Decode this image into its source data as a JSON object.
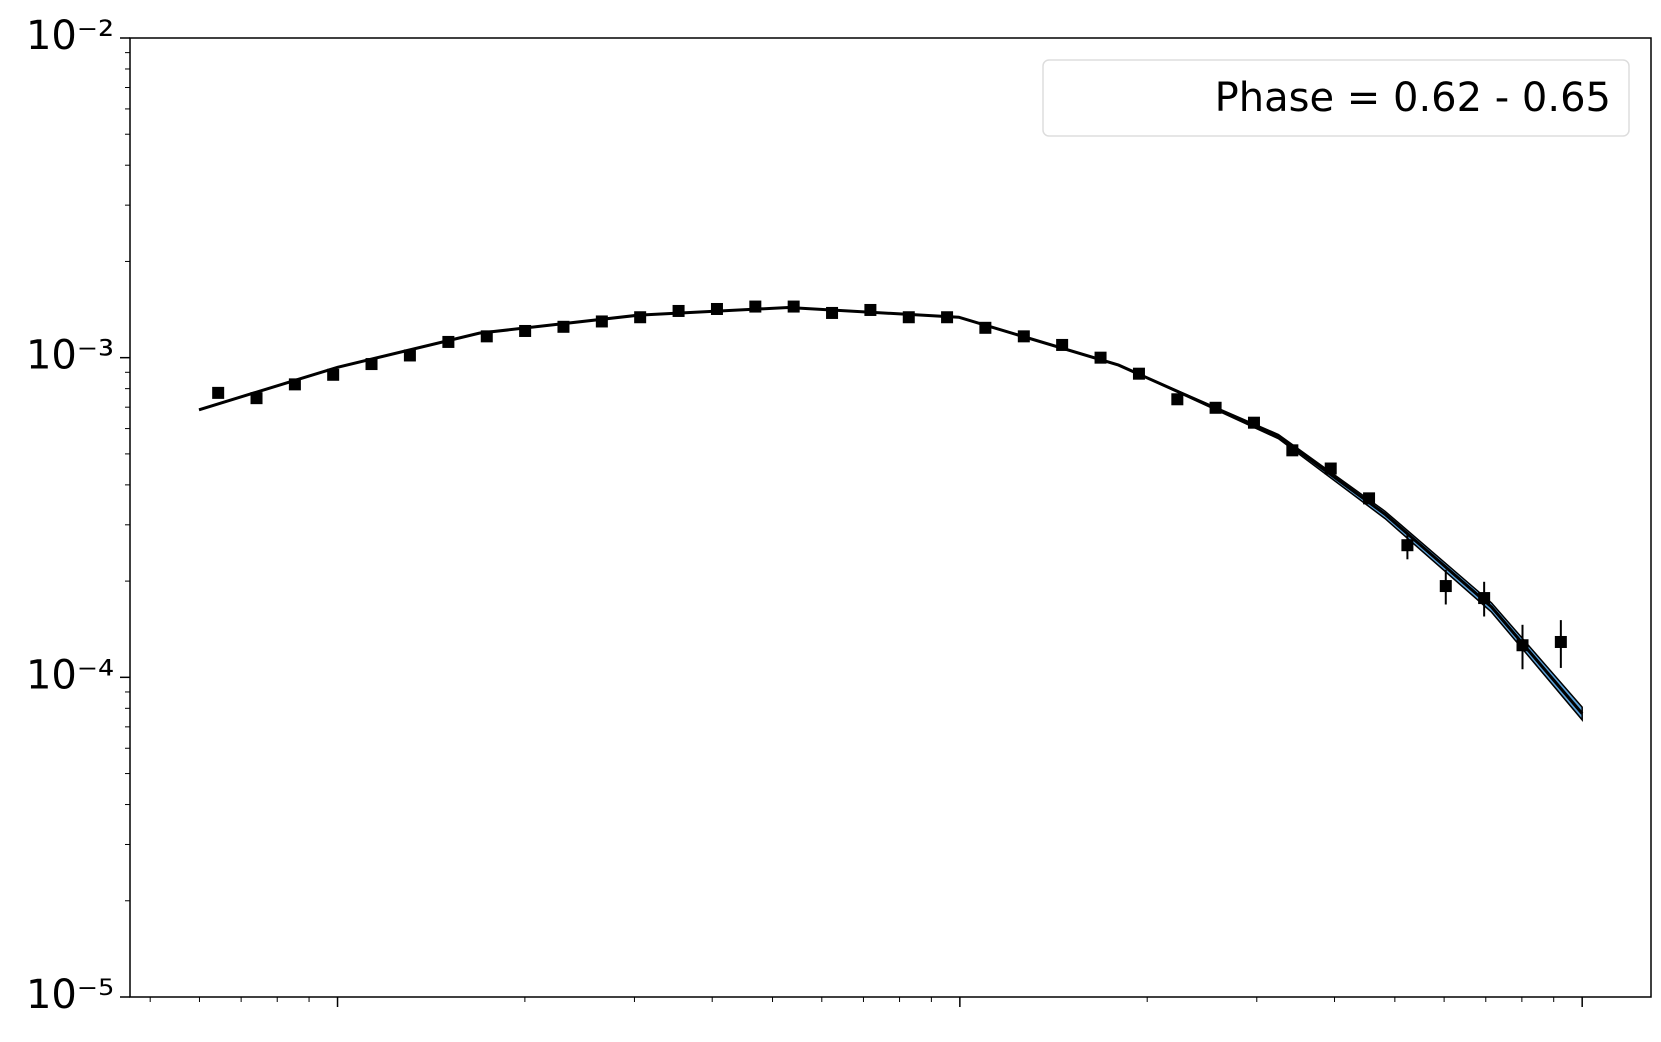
{
  "chart_data": {
    "type": "scatter",
    "xscale": "log",
    "yscale": "log",
    "xlim": [
      0.464,
      129
    ],
    "ylim": [
      1e-05,
      0.01
    ],
    "xticks": [
      1,
      10,
      100
    ],
    "xminorticks": [
      0.5,
      0.6,
      0.7,
      0.8,
      0.9,
      2,
      3,
      4,
      5,
      6,
      7,
      8,
      9,
      20,
      30,
      40,
      50,
      60,
      70,
      80,
      90
    ],
    "yticks": [
      {
        "value": 1e-05,
        "label": "10⁻⁵"
      },
      {
        "value": 0.0001,
        "label": "10⁻⁴"
      },
      {
        "value": 0.001,
        "label": "10⁻³"
      },
      {
        "value": 0.01,
        "label": "10⁻²"
      }
    ],
    "yminorticks": [
      2e-05,
      3e-05,
      4e-05,
      5e-05,
      6e-05,
      7e-05,
      8e-05,
      9e-05,
      0.0002,
      0.0003,
      0.0004,
      0.0005,
      0.0006,
      0.0007,
      0.0008,
      0.0009,
      0.002,
      0.003,
      0.004,
      0.005,
      0.006,
      0.007,
      0.008,
      0.009
    ],
    "legend": "upper right",
    "legend_label": "Phase = 0.62 - 0.65",
    "points": {
      "color": "#000000",
      "x": [
        0.643,
        0.741,
        0.854,
        0.984,
        1.134,
        1.307,
        1.507,
        1.737,
        2.002,
        2.307,
        2.659,
        3.064,
        3.532,
        4.071,
        4.692,
        5.407,
        6.232,
        7.182,
        8.278,
        9.538,
        10.99,
        12.67,
        14.6,
        16.83,
        19.4,
        22.36,
        25.76,
        29.69,
        34.22,
        39.44,
        45.45,
        52.38,
        60.37,
        69.58,
        80.19,
        92.41
      ],
      "values": [
        0.000776,
        0.000747,
        0.000825,
        0.000884,
        0.000955,
        0.001016,
        0.00112,
        0.001166,
        0.001212,
        0.001249,
        0.001298,
        0.001338,
        0.0014,
        0.00142,
        0.001445,
        0.001445,
        0.00138,
        0.00141,
        0.001338,
        0.001338,
        0.00124,
        0.001166,
        0.001096,
        0.001,
        0.000891,
        0.000741,
        0.000697,
        0.000626,
        0.000513,
        0.00045,
        0.000363,
        0.000259,
        0.000193,
        0.000177,
        0.000126,
        0.000129
      ],
      "errors": [
        1e-05,
        1e-05,
        1e-05,
        1e-05,
        1e-05,
        1e-05,
        1e-05,
        1e-05,
        1e-05,
        1e-05,
        1e-05,
        1e-05,
        1e-05,
        1e-05,
        1e-05,
        1e-05,
        1e-05,
        1e-05,
        1e-05,
        1e-05,
        1e-05,
        1e-05,
        1e-05,
        1e-05,
        1e-05,
        1e-05,
        1e-05,
        1e-05,
        8e-06,
        7e-06,
        1.2e-05,
        2.5e-05,
        2.4e-05,
        2.2e-05,
        2e-05,
        2.2e-05
      ]
    },
    "model": {
      "color": "#000000",
      "band_color": "#5aa0d8",
      "x": [
        0.599,
        1,
        1.69,
        3.052,
        5.3,
        9.96,
        17.99,
        32.5,
        48.2,
        71.5,
        100
      ],
      "values": [
        0.000687,
        0.000933,
        0.001193,
        0.001359,
        0.001435,
        0.001338,
        0.000948,
        0.000567,
        0.000324,
        0.000166,
        7.7e-05
      ],
      "band_high": [
        0.000687,
        0.000933,
        0.001193,
        0.001359,
        0.001435,
        0.001338,
        0.000948,
        0.000575,
        0.000331,
        0.000171,
        8.07e-05
      ],
      "band_low": [
        0.000687,
        0.000933,
        0.001193,
        0.001359,
        0.001435,
        0.001338,
        0.000948,
        0.000558,
        0.000314,
        0.00016,
        7.36e-05
      ]
    }
  }
}
